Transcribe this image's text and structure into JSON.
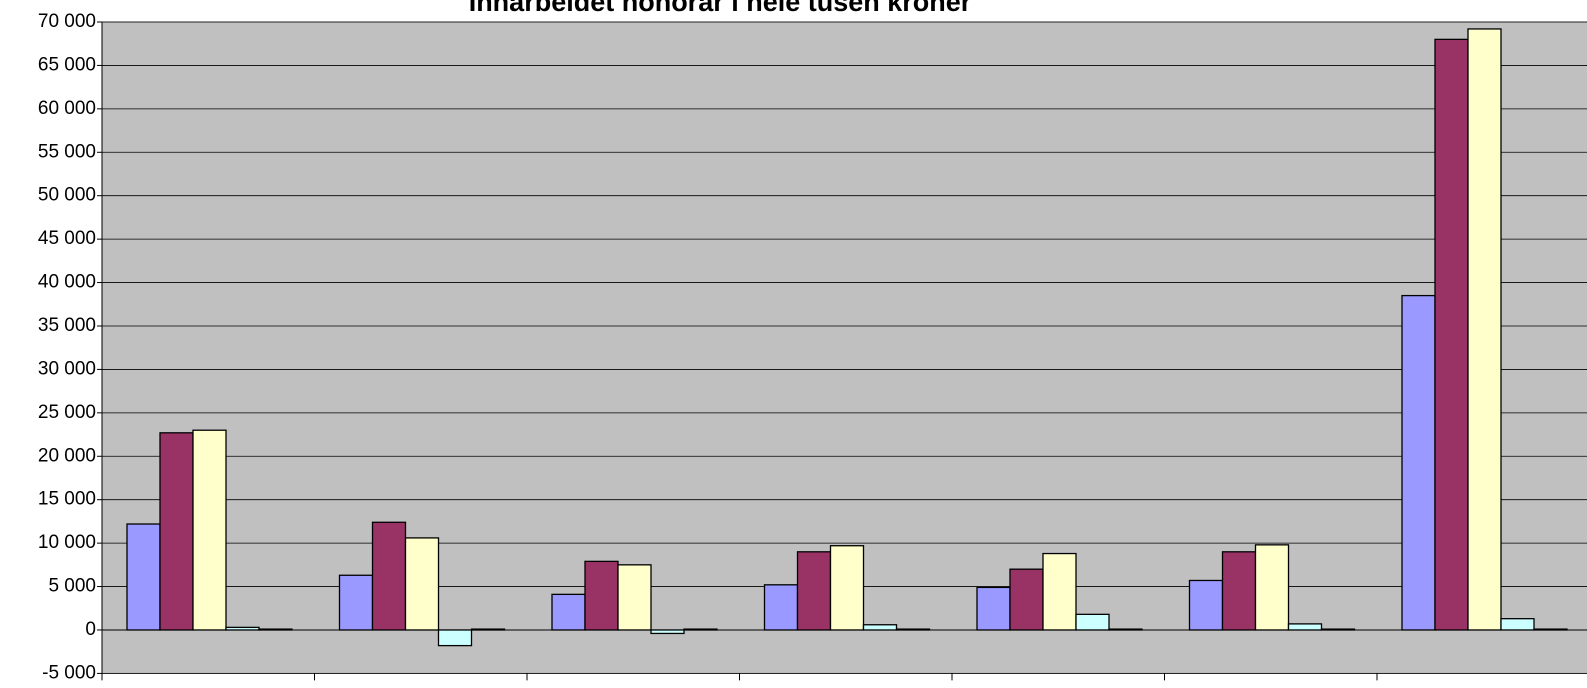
{
  "chart_data": {
    "type": "bar",
    "title": "Innarbeidet honorar i hele tusen kroner",
    "categories": [
      null,
      null,
      null,
      null,
      null,
      null,
      null
    ],
    "series": [
      {
        "color": "#9999ff",
        "values": [
          12200,
          6300,
          4100,
          5200,
          4900,
          5700,
          38500
        ]
      },
      {
        "color": "#993366",
        "values": [
          22700,
          12400,
          7900,
          9000,
          7000,
          9000,
          68000
        ]
      },
      {
        "color": "#ffffcc",
        "values": [
          23000,
          10600,
          7500,
          9700,
          8800,
          9800,
          69200
        ]
      },
      {
        "color": "#ccffff",
        "values": [
          300,
          -1800,
          -400,
          600,
          1800,
          700,
          1300
        ]
      },
      {
        "color": "#660066",
        "values": [
          100,
          100,
          100,
          100,
          100,
          100,
          100
        ]
      }
    ],
    "ylim": [
      -5000,
      70000
    ],
    "yticks": [
      {
        "value": -5000,
        "label": "-5 000"
      },
      0,
      {
        "value": 5000,
        "label": "5 000"
      },
      {
        "value": 10000,
        "label": "10 000"
      },
      {
        "value": 15000,
        "label": "15 000"
      },
      {
        "value": 20000,
        "label": "20 000"
      },
      {
        "value": 25000,
        "label": "25 000"
      },
      {
        "value": 30000,
        "label": "30 000"
      },
      {
        "value": 35000,
        "label": "35 000"
      },
      {
        "value": 40000,
        "label": "40 000"
      },
      {
        "value": 45000,
        "label": "45 000"
      },
      {
        "value": 50000,
        "label": "50 000"
      },
      {
        "value": 55000,
        "label": "55 000"
      },
      {
        "value": 60000,
        "label": "60 000"
      },
      {
        "value": 65000,
        "label": "65 000"
      },
      {
        "value": 70000,
        "label": "70 000"
      }
    ],
    "grid": true,
    "plot_background": "#c0c0c0"
  }
}
